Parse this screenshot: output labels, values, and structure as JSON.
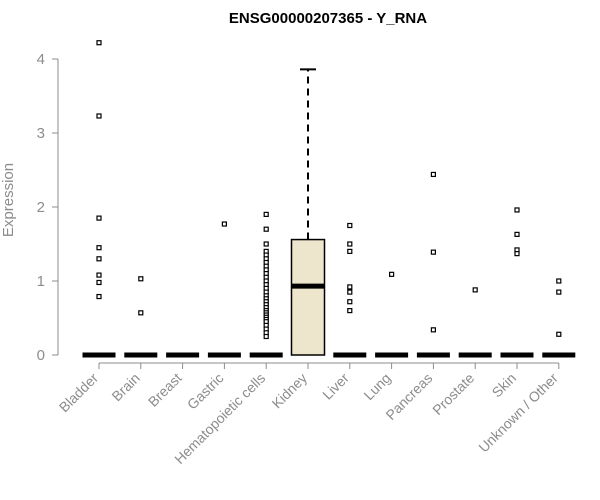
{
  "chart_data": {
    "type": "box",
    "title": "ENSG00000207365 - Y_RNA",
    "ylabel": "Expression",
    "xlabel": "",
    "ylim": [
      0,
      4.3
    ],
    "yticks": [
      0,
      1,
      2,
      3,
      4
    ],
    "box_fill_color": "#ede6cc",
    "categories": [
      "Bladder",
      "Brain",
      "Breast",
      "Gastric",
      "Hematopoietic cells",
      "Kidney",
      "Liver",
      "Lung",
      "Pancreas",
      "Prostate",
      "Skin",
      "Unknown / Other"
    ],
    "boxes": [
      {
        "category": "Bladder",
        "q1": 0,
        "median": 0,
        "q3": 0,
        "whisker_low": 0,
        "whisker_high": 0,
        "outliers": [
          4.22,
          3.23,
          1.85,
          1.45,
          1.3,
          1.08,
          0.98,
          0.79
        ]
      },
      {
        "category": "Brain",
        "q1": 0,
        "median": 0,
        "q3": 0,
        "whisker_low": 0,
        "whisker_high": 0,
        "outliers": [
          1.03,
          0.57
        ]
      },
      {
        "category": "Breast",
        "q1": 0,
        "median": 0,
        "q3": 0,
        "whisker_low": 0,
        "whisker_high": 0,
        "outliers": []
      },
      {
        "category": "Gastric",
        "q1": 0,
        "median": 0,
        "q3": 0,
        "whisker_low": 0,
        "whisker_high": 0,
        "outliers": [
          1.77
        ]
      },
      {
        "category": "Hematopoietic cells",
        "q1": 0,
        "median": 0,
        "q3": 0,
        "whisker_low": 0,
        "whisker_high": 0,
        "outliers": [
          1.9,
          1.7,
          1.5,
          1.4,
          1.35,
          1.3,
          1.25,
          1.2,
          1.15,
          1.1,
          1.05,
          1.0,
          0.95,
          0.9,
          0.85,
          0.8,
          0.76,
          0.72,
          0.68,
          0.64,
          0.6,
          0.57,
          0.54,
          0.51,
          0.48,
          0.45,
          0.4,
          0.35,
          0.3,
          0.25
        ]
      },
      {
        "category": "Kidney",
        "q1": 0,
        "median": 0.93,
        "q3": 1.56,
        "whisker_low": 0,
        "whisker_high": 3.86,
        "outliers": []
      },
      {
        "category": "Liver",
        "q1": 0,
        "median": 0,
        "q3": 0,
        "whisker_low": 0,
        "whisker_high": 0,
        "outliers": [
          1.75,
          1.5,
          1.4,
          0.92,
          0.85,
          0.72,
          0.6
        ]
      },
      {
        "category": "Lung",
        "q1": 0,
        "median": 0,
        "q3": 0,
        "whisker_low": 0,
        "whisker_high": 0,
        "outliers": [
          1.09
        ]
      },
      {
        "category": "Pancreas",
        "q1": 0,
        "median": 0,
        "q3": 0,
        "whisker_low": 0,
        "whisker_high": 0,
        "outliers": [
          2.44,
          1.39,
          0.34
        ]
      },
      {
        "category": "Prostate",
        "q1": 0,
        "median": 0,
        "q3": 0,
        "whisker_low": 0,
        "whisker_high": 0,
        "outliers": [
          0.88
        ]
      },
      {
        "category": "Skin",
        "q1": 0,
        "median": 0,
        "q3": 0,
        "whisker_low": 0,
        "whisker_high": 0,
        "outliers": [
          1.96,
          1.63,
          1.42,
          1.37
        ]
      },
      {
        "category": "Unknown / Other",
        "q1": 0,
        "median": 0,
        "q3": 0,
        "whisker_low": 0,
        "whisker_high": 0,
        "outliers": [
          1.0,
          0.85,
          0.28
        ]
      }
    ]
  }
}
